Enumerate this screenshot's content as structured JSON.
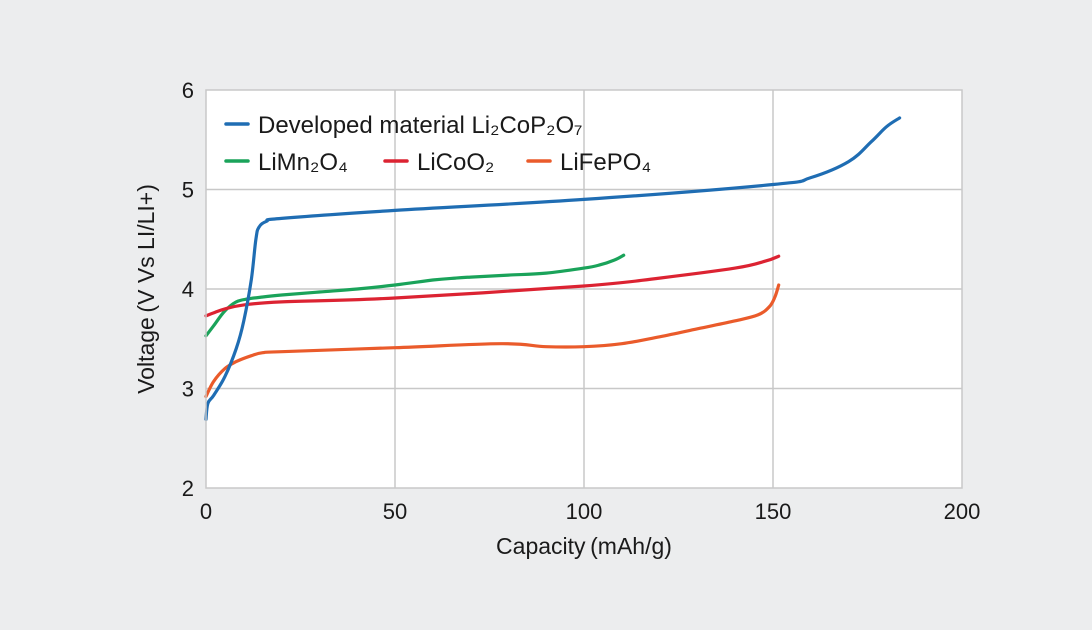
{
  "chart_data": {
    "type": "line",
    "xlabel": "Capacity (mAh/g)",
    "ylabel": "Voltage (V Vs LI/LI+)",
    "xlim": [
      0,
      200
    ],
    "ylim": [
      2,
      6
    ],
    "xticks": [
      "0",
      "50",
      "100",
      "150",
      "200"
    ],
    "yticks": [
      "2",
      "3",
      "4",
      "5",
      "6"
    ],
    "grid": true,
    "legend_position": "top-left",
    "series": [
      {
        "name": "Developed material Li₂CoP₂O₇",
        "color": "#1f6db3",
        "x": [
          0,
          0.5,
          2,
          5,
          8,
          10,
          12,
          13.2,
          14,
          16,
          20,
          50,
          100,
          150,
          160,
          170,
          176,
          180,
          183.5
        ],
        "y": [
          2.69,
          2.85,
          2.93,
          3.12,
          3.4,
          3.68,
          4.1,
          4.5,
          4.62,
          4.68,
          4.71,
          4.79,
          4.9,
          5.05,
          5.12,
          5.28,
          5.48,
          5.63,
          5.72
        ]
      },
      {
        "name": "LiMn₂O₄",
        "color": "#1aa35a",
        "x": [
          0,
          2,
          5,
          8,
          11,
          15,
          20,
          30,
          40,
          50,
          60,
          66,
          70,
          80,
          90,
          100,
          104,
          108,
          110.5
        ],
        "y": [
          3.53,
          3.63,
          3.78,
          3.87,
          3.9,
          3.92,
          3.94,
          3.97,
          4.0,
          4.04,
          4.09,
          4.11,
          4.12,
          4.14,
          4.16,
          4.21,
          4.24,
          4.29,
          4.34
        ]
      },
      {
        "name": "LiCoO₂",
        "color": "#dc2332",
        "x": [
          0,
          2,
          5,
          10,
          20,
          50,
          100,
          120,
          140,
          148,
          151.5
        ],
        "y": [
          3.73,
          3.76,
          3.8,
          3.84,
          3.87,
          3.91,
          4.03,
          4.11,
          4.21,
          4.28,
          4.33
        ]
      },
      {
        "name": "LiFePO₄",
        "color": "#ea5b2b",
        "x": [
          0,
          2,
          5,
          8,
          12,
          15,
          20,
          50,
          78,
          90,
          100,
          110,
          120,
          130,
          140,
          146,
          149,
          150.5,
          151.5
        ],
        "y": [
          2.92,
          3.07,
          3.2,
          3.27,
          3.33,
          3.36,
          3.37,
          3.41,
          3.45,
          3.42,
          3.42,
          3.45,
          3.52,
          3.6,
          3.68,
          3.74,
          3.82,
          3.92,
          4.04
        ]
      }
    ]
  }
}
